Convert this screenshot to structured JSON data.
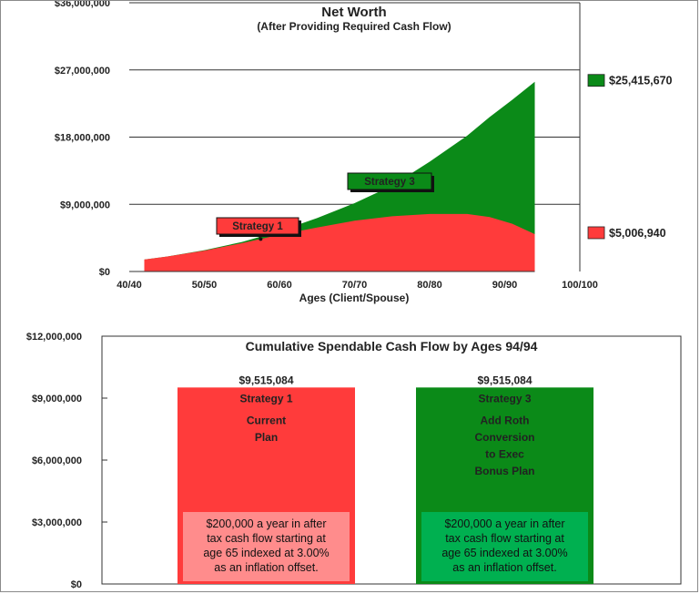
{
  "colors": {
    "strategy1": "#ff3b3b",
    "strategy3": "#0b8a18",
    "strategy1_dark": "#b01010",
    "strategy3_dark": "#045a0c",
    "note1_bg": "#ff8c8c",
    "note3_bg": "#00b050"
  },
  "chart_data": [
    {
      "type": "area",
      "title": "Net Worth",
      "subtitle": "(After Providing Required Cash Flow)",
      "xlabel": "Ages (Client/Spouse)",
      "ylabel": "",
      "x_ticks": [
        "40/40",
        "50/50",
        "60/60",
        "70/70",
        "80/80",
        "90/90",
        "100/100"
      ],
      "x_tick_ages": [
        40,
        50,
        60,
        70,
        80,
        90,
        100
      ],
      "xlim": [
        40,
        100
      ],
      "y_ticks": [
        "$0",
        "$9,000,000",
        "$18,000,000",
        "$27,000,000",
        "$36,000,000"
      ],
      "y_tick_values": [
        0,
        9000000,
        18000000,
        27000000,
        36000000
      ],
      "ylim": [
        0,
        36000000
      ],
      "grid": "horizontal",
      "x": [
        42,
        45,
        50,
        55,
        60,
        65,
        70,
        75,
        80,
        85,
        88,
        91,
        94
      ],
      "series": [
        {
          "name": "Strategy 3",
          "color_key": "strategy3",
          "values": [
            1600000,
            2000000,
            2850000,
            3950000,
            5400000,
            7150000,
            9150000,
            11500000,
            14700000,
            18200000,
            20700000,
            23000000,
            25415670
          ],
          "end_label": "$25,415,670"
        },
        {
          "name": "Strategy 1",
          "color_key": "strategy1",
          "values": [
            1600000,
            2000000,
            2800000,
            3800000,
            4900000,
            5900000,
            6800000,
            7400000,
            7700000,
            7700000,
            7300000,
            6400000,
            5006940
          ],
          "end_label": "$5,006,940"
        }
      ],
      "callouts": [
        {
          "text": "Strategy 1",
          "color_key": "strategy1",
          "anchor_age": 57.5
        },
        {
          "text": "Strategy 3",
          "color_key": "strategy3",
          "anchor_age": 76
        }
      ]
    },
    {
      "type": "bar",
      "title": "Cumulative Spendable Cash Flow by Ages 94/94",
      "y_ticks": [
        "$0",
        "$3,000,000",
        "$6,000,000",
        "$9,000,000",
        "$12,000,000"
      ],
      "y_tick_values": [
        0,
        3000000,
        6000000,
        9000000,
        12000000
      ],
      "ylim": [
        0,
        12000000
      ],
      "categories": [
        "Strategy 1",
        "Strategy 3"
      ],
      "values": [
        9515084,
        9515084
      ],
      "value_labels": [
        "$9,515,084",
        "$9,515,084"
      ],
      "bars": [
        {
          "label": "Strategy 1",
          "color_key": "strategy1",
          "description": [
            "Current",
            "Plan"
          ],
          "note": [
            "$200,000  a year in after",
            "tax cash flow starting at",
            "age 65 indexed at 3.00%",
            "as an inflation offset."
          ],
          "note_color_key": "note1_bg"
        },
        {
          "label": "Strategy 3",
          "color_key": "strategy3",
          "description": [
            "Add Roth",
            "Conversion",
            "to Exec",
            "Bonus Plan"
          ],
          "note": [
            "$200,000  a year in after",
            "tax cash flow starting at",
            "age 65 indexed at 3.00%",
            "as an inflation offset."
          ],
          "note_color_key": "note3_bg"
        }
      ]
    }
  ]
}
